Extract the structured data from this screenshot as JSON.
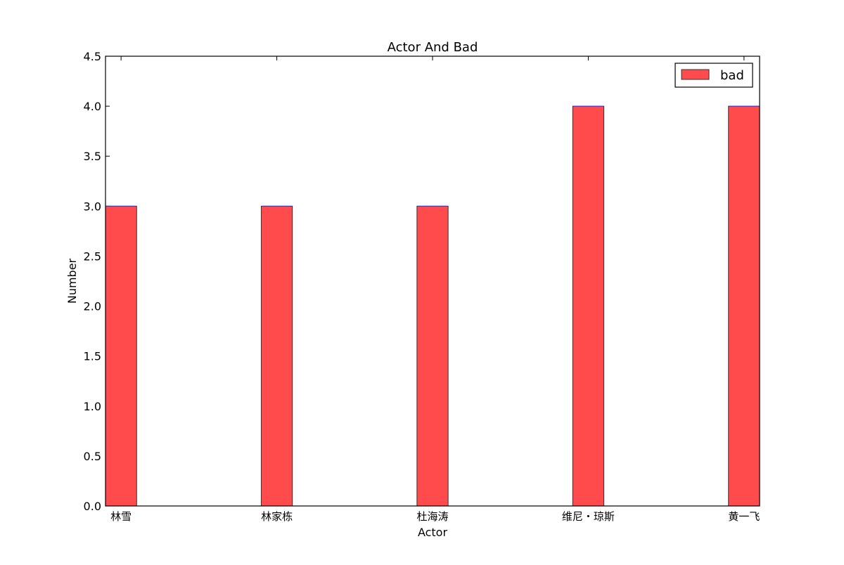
{
  "chart_data": {
    "type": "bar",
    "title": "Actor And Bad",
    "xlabel": "Actor",
    "ylabel": "Number",
    "categories": [
      "林雪",
      "林家栋",
      "杜海涛",
      "维尼・琼斯",
      "黄一飞"
    ],
    "series": [
      {
        "name": "bad",
        "values": [
          3,
          3,
          3,
          4,
          4
        ],
        "color": "#ff4b4b"
      }
    ],
    "ylim": [
      0,
      4.5
    ],
    "yticks": [
      "0.0",
      "0.5",
      "1.0",
      "1.5",
      "2.0",
      "2.5",
      "3.0",
      "3.5",
      "4.0",
      "4.5"
    ],
    "grid": false,
    "legend_position": "top-right",
    "bar_color": "#ff4b4b",
    "bar_edge_color": "#333333",
    "bar_top_accent_color": "#3333ff"
  }
}
